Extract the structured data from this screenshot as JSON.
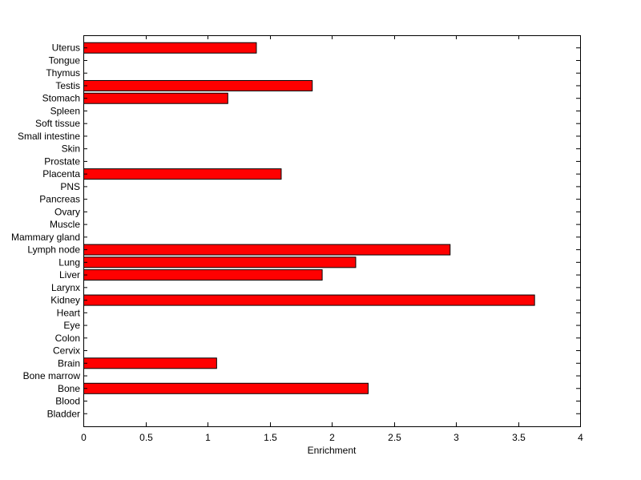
{
  "chart_data": {
    "type": "bar",
    "orientation": "horizontal",
    "categories": [
      "Bladder",
      "Blood",
      "Bone",
      "Bone marrow",
      "Brain",
      "Cervix",
      "Colon",
      "Eye",
      "Heart",
      "Kidney",
      "Larynx",
      "Liver",
      "Lung",
      "Lymph node",
      "Mammary gland",
      "Muscle",
      "Ovary",
      "Pancreas",
      "PNS",
      "Placenta",
      "Prostate",
      "Skin",
      "Small intestine",
      "Soft tissue",
      "Spleen",
      "Stomach",
      "Testis",
      "Thymus",
      "Tongue",
      "Uterus"
    ],
    "values": [
      0,
      0,
      2.29,
      0,
      1.07,
      0,
      0,
      0,
      0,
      3.63,
      0,
      1.92,
      2.19,
      2.95,
      0,
      0,
      0,
      0,
      0,
      1.59,
      0,
      0,
      0,
      0,
      0,
      1.16,
      1.84,
      0,
      0,
      1.39
    ],
    "xlabel": "Enrichment",
    "ylabel": "",
    "title": "",
    "xlim": [
      0,
      4
    ],
    "xticks": [
      "0",
      "0.5",
      "1",
      "1.5",
      "2",
      "2.5",
      "3",
      "3.5",
      "4"
    ],
    "grid": false,
    "bar_color": "#ff0000",
    "bar_edge_color": "#000000"
  }
}
